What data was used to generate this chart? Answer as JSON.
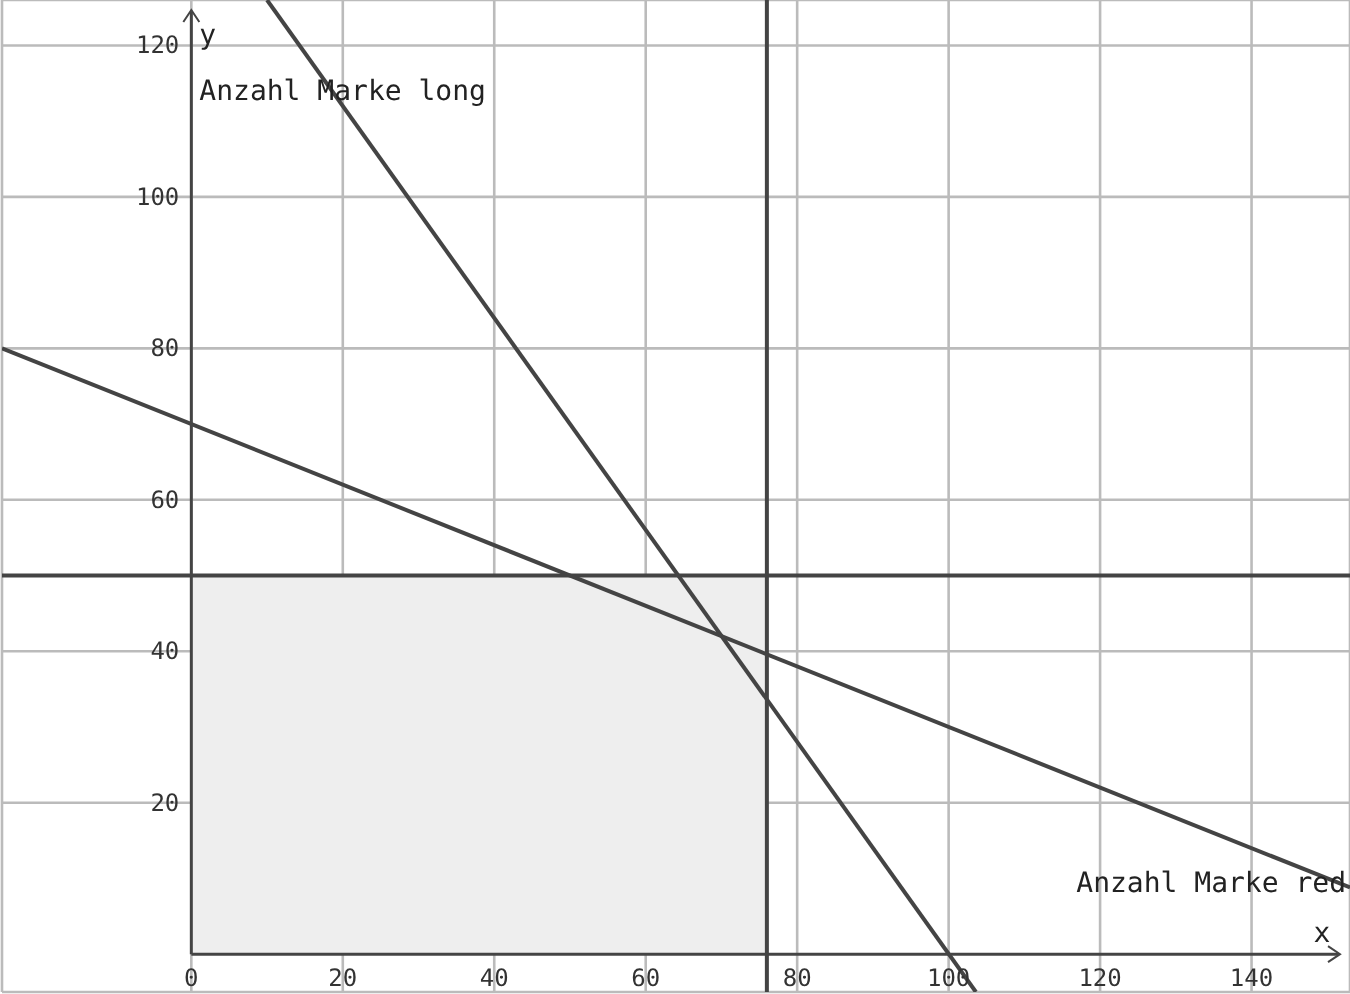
{
  "chart_data": {
    "type": "line",
    "xlabel": "x",
    "ylabel": "y",
    "xlim": [
      -25,
      153
    ],
    "ylim": [
      -5,
      126
    ],
    "xticks": [
      0,
      20,
      40,
      60,
      80,
      100,
      120,
      140
    ],
    "yticks": [
      20,
      40,
      60,
      80,
      100,
      120
    ],
    "grid": true,
    "series": [
      {
        "type": "area",
        "color": "#eeeeee",
        "x": [
          0,
          76
        ],
        "values": [
          50,
          50
        ]
      },
      {
        "type": "line",
        "color": "#444444",
        "x": [
          -25,
          153
        ],
        "values": [
          80,
          8.8
        ]
      },
      {
        "type": "line",
        "color": "#444444",
        "x": [
          10,
          103.6
        ],
        "values": [
          126,
          -5
        ]
      }
    ],
    "ref_lines": [
      {
        "axis": "x",
        "value": 76,
        "color": "#444444"
      },
      {
        "axis": "y",
        "value": 50,
        "color": "#444444"
      }
    ],
    "annotations": [
      "Anzahl Marke long",
      "Anzahl Marke red"
    ]
  }
}
